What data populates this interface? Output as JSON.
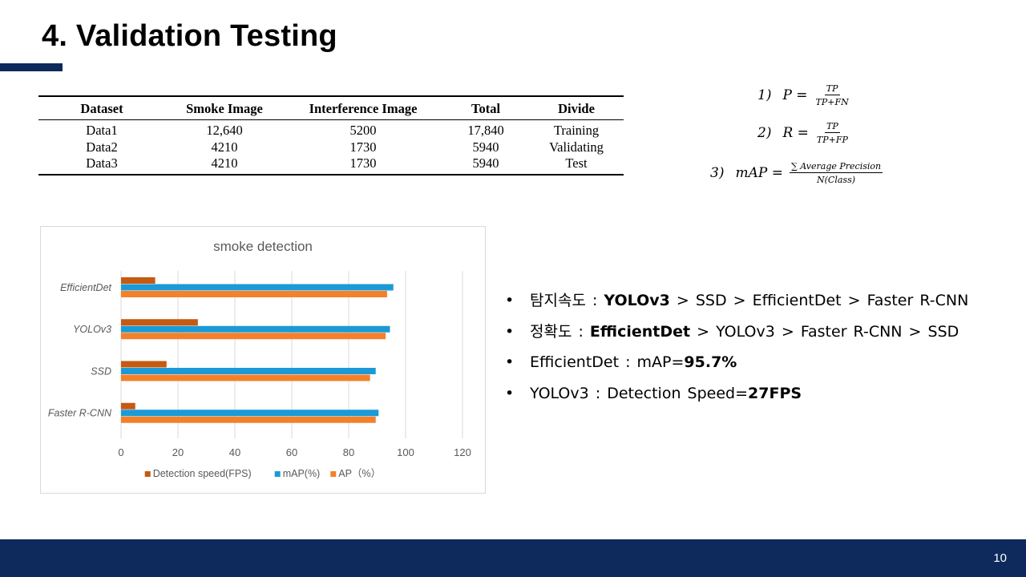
{
  "slide": {
    "title": "4. Validation Testing",
    "page_number": "10"
  },
  "table": {
    "headers": [
      "Dataset",
      "Smoke Image",
      "Interference Image",
      "Total",
      "Divide"
    ],
    "rows": [
      [
        "Data1",
        "12,640",
        "5200",
        "17,840",
        "Training"
      ],
      [
        "Data2",
        "4210",
        "1730",
        "5940",
        "Validating"
      ],
      [
        "Data3",
        "4210",
        "1730",
        "5940",
        "Test"
      ]
    ]
  },
  "formulas": [
    {
      "label": "1)",
      "lhs": "P =",
      "numerator": "TP",
      "denominator": "TP+FN"
    },
    {
      "label": "2)",
      "lhs": "R =",
      "numerator": "TP",
      "denominator": "TP+FP"
    },
    {
      "label": "3)",
      "lhs": "mAP =",
      "numerator": "∑ Average Precision",
      "denominator": "N(Class)"
    }
  ],
  "chart_data": {
    "type": "bar",
    "orientation": "horizontal",
    "title": "smoke detection",
    "categories": [
      "EfficientDet",
      "YOLOv3",
      "SSD",
      "Faster R-CNN"
    ],
    "series": [
      {
        "name": "Detection speed(FPS)",
        "color": "#c55a11",
        "values": [
          12,
          27,
          16,
          5
        ]
      },
      {
        "name": "mAP(%)",
        "color": "#1c9ad6",
        "values": [
          95.7,
          94.5,
          89.5,
          90.5
        ]
      },
      {
        "name": "AP（%）",
        "color": "#f4802a",
        "values": [
          93.5,
          93,
          87.5,
          89.5
        ]
      }
    ],
    "xticks": [
      "0",
      "20",
      "40",
      "60",
      "80",
      "100",
      "120"
    ],
    "xlim": [
      0,
      120
    ],
    "grid": "vertical",
    "legend": "bottom",
    "xlabel": "",
    "ylabel": ""
  },
  "bullets": [
    {
      "pre": "탐지속도 : ",
      "bold": "YOLOv3",
      "post": " > SSD > EfficientDet > Faster R-CNN"
    },
    {
      "pre": "정확도 : ",
      "bold": "EfficientDet",
      "post": " > YOLOv3 > Faster R-CNN > SSD"
    },
    {
      "pre": "EfficientDet : mAP=",
      "bold": "95.7%",
      "post": ""
    },
    {
      "pre": "YOLOv3 : Detection Speed=",
      "bold": "27FPS",
      "post": ""
    }
  ],
  "bullet_symbol": "•"
}
